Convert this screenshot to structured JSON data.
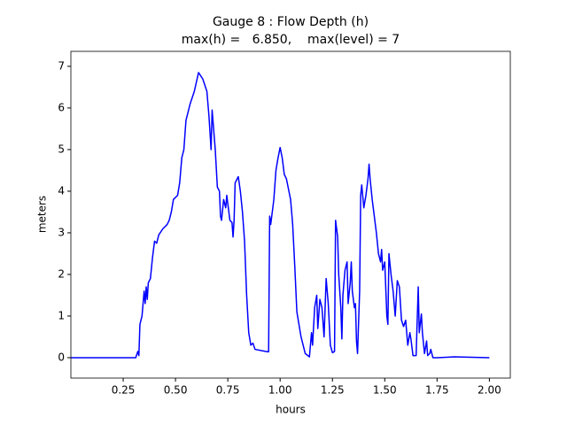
{
  "chart_data": {
    "type": "line",
    "title": "Gauge 8 : Flow Depth (h)",
    "subtitle": "max(h) =   6.850,    max(level) = 7",
    "x_label": "hours",
    "y_label": "meters",
    "xlim": [
      0,
      2.1
    ],
    "ylim": [
      -0.49,
      7.36
    ],
    "xticks": [
      {
        "value": 0.25,
        "label": "0.25"
      },
      {
        "value": 0.5,
        "label": "0.50"
      },
      {
        "value": 0.75,
        "label": "0.75"
      },
      {
        "value": 1,
        "label": "1.00"
      },
      {
        "value": 1.25,
        "label": "1.25"
      },
      {
        "value": 1.5,
        "label": "1.50"
      },
      {
        "value": 1.75,
        "label": "1.75"
      },
      {
        "value": 2,
        "label": "2.00"
      }
    ],
    "yticks": [
      0,
      1,
      2,
      3,
      4,
      5,
      6,
      7
    ],
    "grid": false,
    "series": [
      {
        "name": "h",
        "color": "#0000ff",
        "x": [
          0,
          0.31,
          0.32,
          0.325,
          0.33,
          0.34,
          0.35,
          0.355,
          0.36,
          0.365,
          0.37,
          0.38,
          0.39,
          0.4,
          0.41,
          0.42,
          0.44,
          0.46,
          0.47,
          0.48,
          0.49,
          0.51,
          0.52,
          0.53,
          0.54,
          0.55,
          0.57,
          0.59,
          0.61,
          0.63,
          0.65,
          0.66,
          0.67,
          0.675,
          0.69,
          0.7,
          0.71,
          0.715,
          0.72,
          0.73,
          0.74,
          0.745,
          0.76,
          0.77,
          0.775,
          0.78,
          0.785,
          0.8,
          0.81,
          0.82,
          0.83,
          0.84,
          0.85,
          0.86,
          0.87,
          0.88,
          0.93,
          0.945,
          0.95,
          0.955,
          0.97,
          0.98,
          0.99,
          1.0,
          1.01,
          1.02,
          1.03,
          1.05,
          1.06,
          1.07,
          1.08,
          1.1,
          1.12,
          1.14,
          1.15,
          1.155,
          1.165,
          1.175,
          1.18,
          1.19,
          1.2,
          1.21,
          1.22,
          1.23,
          1.24,
          1.25,
          1.26,
          1.265,
          1.275,
          1.28,
          1.29,
          1.295,
          1.3,
          1.31,
          1.32,
          1.325,
          1.335,
          1.34,
          1.345,
          1.355,
          1.36,
          1.365,
          1.37,
          1.38,
          1.385,
          1.39,
          1.4,
          1.41,
          1.42,
          1.425,
          1.43,
          1.44,
          1.46,
          1.47,
          1.48,
          1.485,
          1.49,
          1.5,
          1.51,
          1.515,
          1.52,
          1.53,
          1.54,
          1.55,
          1.56,
          1.57,
          1.58,
          1.59,
          1.6,
          1.61,
          1.62,
          1.625,
          1.635,
          1.65,
          1.66,
          1.665,
          1.675,
          1.68,
          1.69,
          1.7,
          1.705,
          1.715,
          1.72,
          1.73,
          1.75,
          1.83,
          2.0
        ],
        "values": [
          0,
          0,
          0.15,
          0.05,
          0.8,
          1.0,
          1.6,
          1.3,
          1.7,
          1.4,
          1.8,
          1.9,
          2.4,
          2.8,
          2.75,
          2.95,
          3.1,
          3.2,
          3.3,
          3.5,
          3.8,
          3.9,
          4.2,
          4.8,
          5.0,
          5.7,
          6.1,
          6.4,
          6.85,
          6.7,
          6.4,
          5.8,
          5.0,
          5.95,
          5.0,
          4.1,
          4.0,
          3.4,
          3.3,
          3.8,
          3.6,
          3.9,
          3.3,
          3.25,
          2.9,
          3.3,
          4.2,
          4.35,
          4.0,
          3.5,
          2.8,
          1.5,
          0.6,
          0.3,
          0.35,
          0.2,
          0.15,
          0.14,
          3.4,
          3.2,
          3.8,
          4.5,
          4.8,
          5.05,
          4.8,
          4.4,
          4.3,
          3.8,
          3.2,
          2.2,
          1.1,
          0.5,
          0.1,
          0.02,
          0.6,
          0.3,
          1.2,
          1.5,
          0.7,
          1.4,
          1.2,
          0.5,
          1.9,
          1.3,
          0.3,
          0.12,
          0.15,
          3.3,
          2.9,
          2.0,
          1.2,
          0.45,
          1.5,
          2.1,
          2.3,
          1.3,
          1.8,
          2.3,
          1.6,
          1.2,
          1.3,
          0.4,
          0.1,
          1.6,
          3.9,
          4.15,
          3.6,
          3.9,
          4.3,
          4.65,
          4.3,
          3.8,
          3.0,
          2.5,
          2.3,
          2.6,
          2.1,
          2.3,
          1.0,
          0.8,
          2.5,
          2.0,
          1.6,
          1.0,
          1.85,
          1.7,
          0.9,
          0.75,
          0.9,
          0.3,
          0.6,
          0.45,
          0.05,
          0.05,
          1.7,
          0.6,
          1.05,
          0.6,
          0.1,
          0.4,
          0.05,
          0.1,
          0.2,
          0.0,
          0.0,
          0.02,
          0
        ]
      }
    ]
  }
}
